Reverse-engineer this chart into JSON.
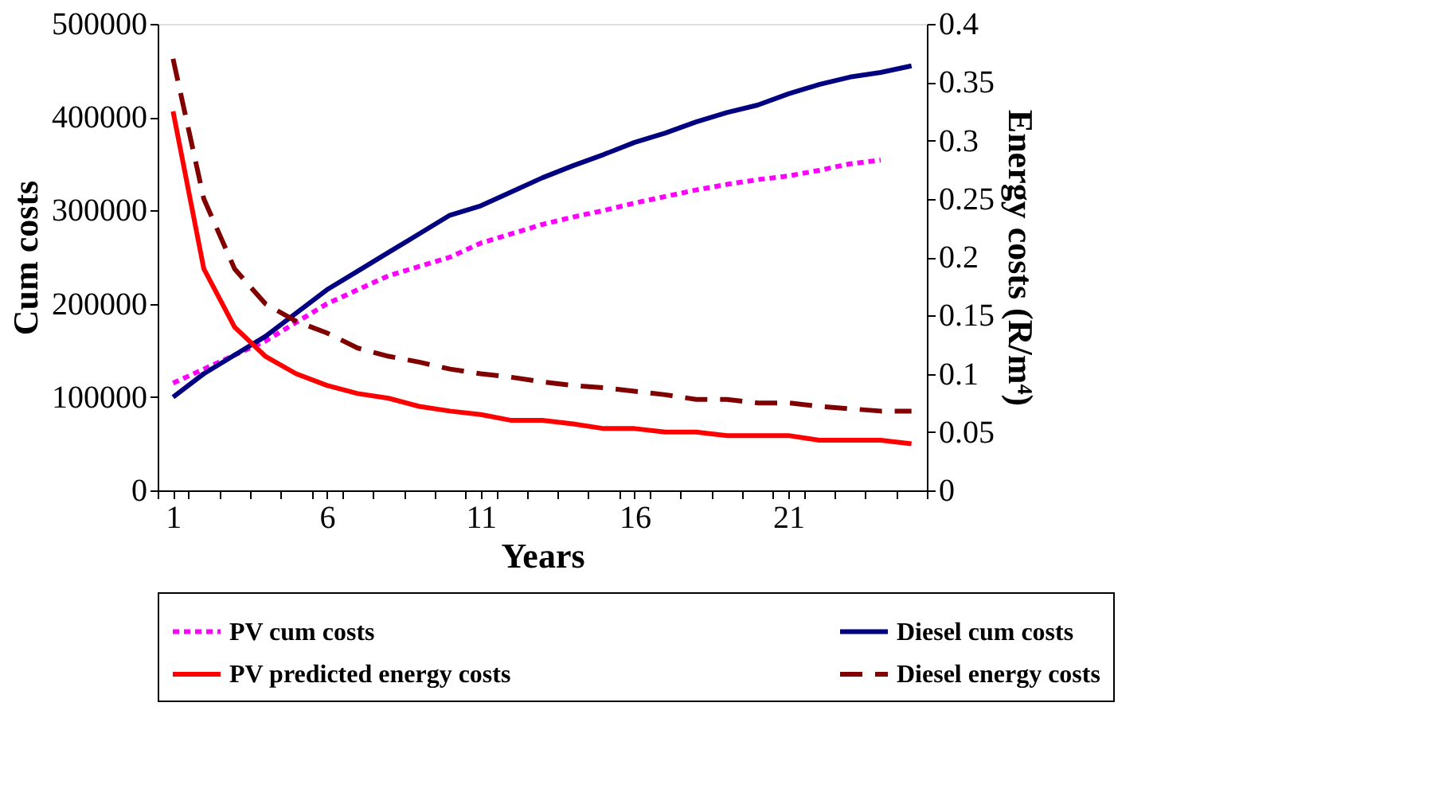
{
  "chart_data": {
    "type": "line",
    "xlabel": "Years",
    "ylabel": "Cum costs",
    "y2label": "Energy costs (R/m⁴)",
    "x": [
      1,
      2,
      3,
      4,
      5,
      6,
      7,
      8,
      9,
      10,
      11,
      12,
      13,
      14,
      15,
      16,
      17,
      18,
      19,
      20,
      21,
      22,
      23,
      24,
      25
    ],
    "xlim": [
      0.5,
      25.5
    ],
    "xticks": [
      {
        "value": 0.5,
        "label": null
      },
      1,
      {
        "value": 1.5,
        "label": null
      },
      {
        "value": 2.5,
        "label": null
      },
      {
        "value": 3.5,
        "label": null
      },
      {
        "value": 4.5,
        "label": null
      },
      {
        "value": 5.5,
        "label": null
      },
      6,
      {
        "value": 6.5,
        "label": null
      },
      {
        "value": 7.5,
        "label": null
      },
      {
        "value": 8.5,
        "label": null
      },
      {
        "value": 9.5,
        "label": null
      },
      {
        "value": 10.5,
        "label": null
      },
      11,
      {
        "value": 11.5,
        "label": null
      },
      {
        "value": 12.5,
        "label": null
      },
      {
        "value": 13.5,
        "label": null
      },
      {
        "value": 14.5,
        "label": null
      },
      {
        "value": 15.5,
        "label": null
      },
      16,
      {
        "value": 16.5,
        "label": null
      },
      {
        "value": 17.5,
        "label": null
      },
      {
        "value": 18.5,
        "label": null
      },
      {
        "value": 19.5,
        "label": null
      },
      {
        "value": 20.5,
        "label": null
      },
      21,
      {
        "value": 21.5,
        "label": null
      },
      {
        "value": 22.5,
        "label": null
      },
      {
        "value": 23.5,
        "label": null
      },
      {
        "value": 24.5,
        "label": null
      },
      {
        "value": 25.5,
        "label": null
      }
    ],
    "ylim": [
      0,
      500000
    ],
    "yticks": [
      0,
      100000,
      200000,
      300000,
      400000,
      500000
    ],
    "y2lim": [
      0,
      0.4
    ],
    "y2ticks": [
      0,
      0.05,
      0.1,
      0.15,
      0.2,
      0.25,
      0.3,
      0.35,
      0.4
    ],
    "grid": false,
    "legend": "bottom",
    "marker": "none",
    "series": [
      {
        "name": "PV cum costs",
        "color": "#ff00ff",
        "line_style": "dotted",
        "values": [
          115000,
          130000,
          145000,
          160000,
          180000,
          200000,
          215000,
          230000,
          240000,
          250000,
          265000,
          275000,
          285000,
          293000,
          300000,
          308000,
          315000,
          322000,
          328000,
          333000,
          337000,
          343000,
          350000,
          354000,
          null
        ]
      },
      {
        "name": "Diesel cum costs",
        "color": "#000080",
        "line_style": "solid",
        "values": [
          100000,
          125000,
          145000,
          165000,
          190000,
          215000,
          235000,
          255000,
          275000,
          295000,
          305000,
          320000,
          335000,
          348000,
          360000,
          373000,
          383000,
          395000,
          405000,
          413000,
          425000,
          435000,
          443000,
          448000,
          455000
        ]
      },
      {
        "name": "PV predicted energy costs",
        "color": "#ff0000",
        "line_style": "solid",
        "axis": "y2",
        "values": [
          0.325,
          0.19,
          0.14,
          0.115,
          0.1,
          0.09,
          0.083,
          0.079,
          0.072,
          0.068,
          0.065,
          0.06,
          0.06,
          0.057,
          0.053,
          0.053,
          0.05,
          0.05,
          0.047,
          0.047,
          0.047,
          0.043,
          0.043,
          0.043,
          0.04
        ]
      },
      {
        "name": "Diesel energy costs",
        "color": "#800000",
        "line_style": "dashed",
        "axis": "y2",
        "values": [
          0.37,
          0.25,
          0.19,
          0.16,
          0.145,
          0.135,
          0.122,
          0.115,
          0.11,
          0.104,
          0.1,
          0.097,
          0.093,
          0.09,
          0.088,
          0.085,
          0.082,
          0.078,
          0.078,
          0.075,
          0.075,
          0.072,
          0.07,
          0.068,
          0.068
        ]
      }
    ]
  }
}
